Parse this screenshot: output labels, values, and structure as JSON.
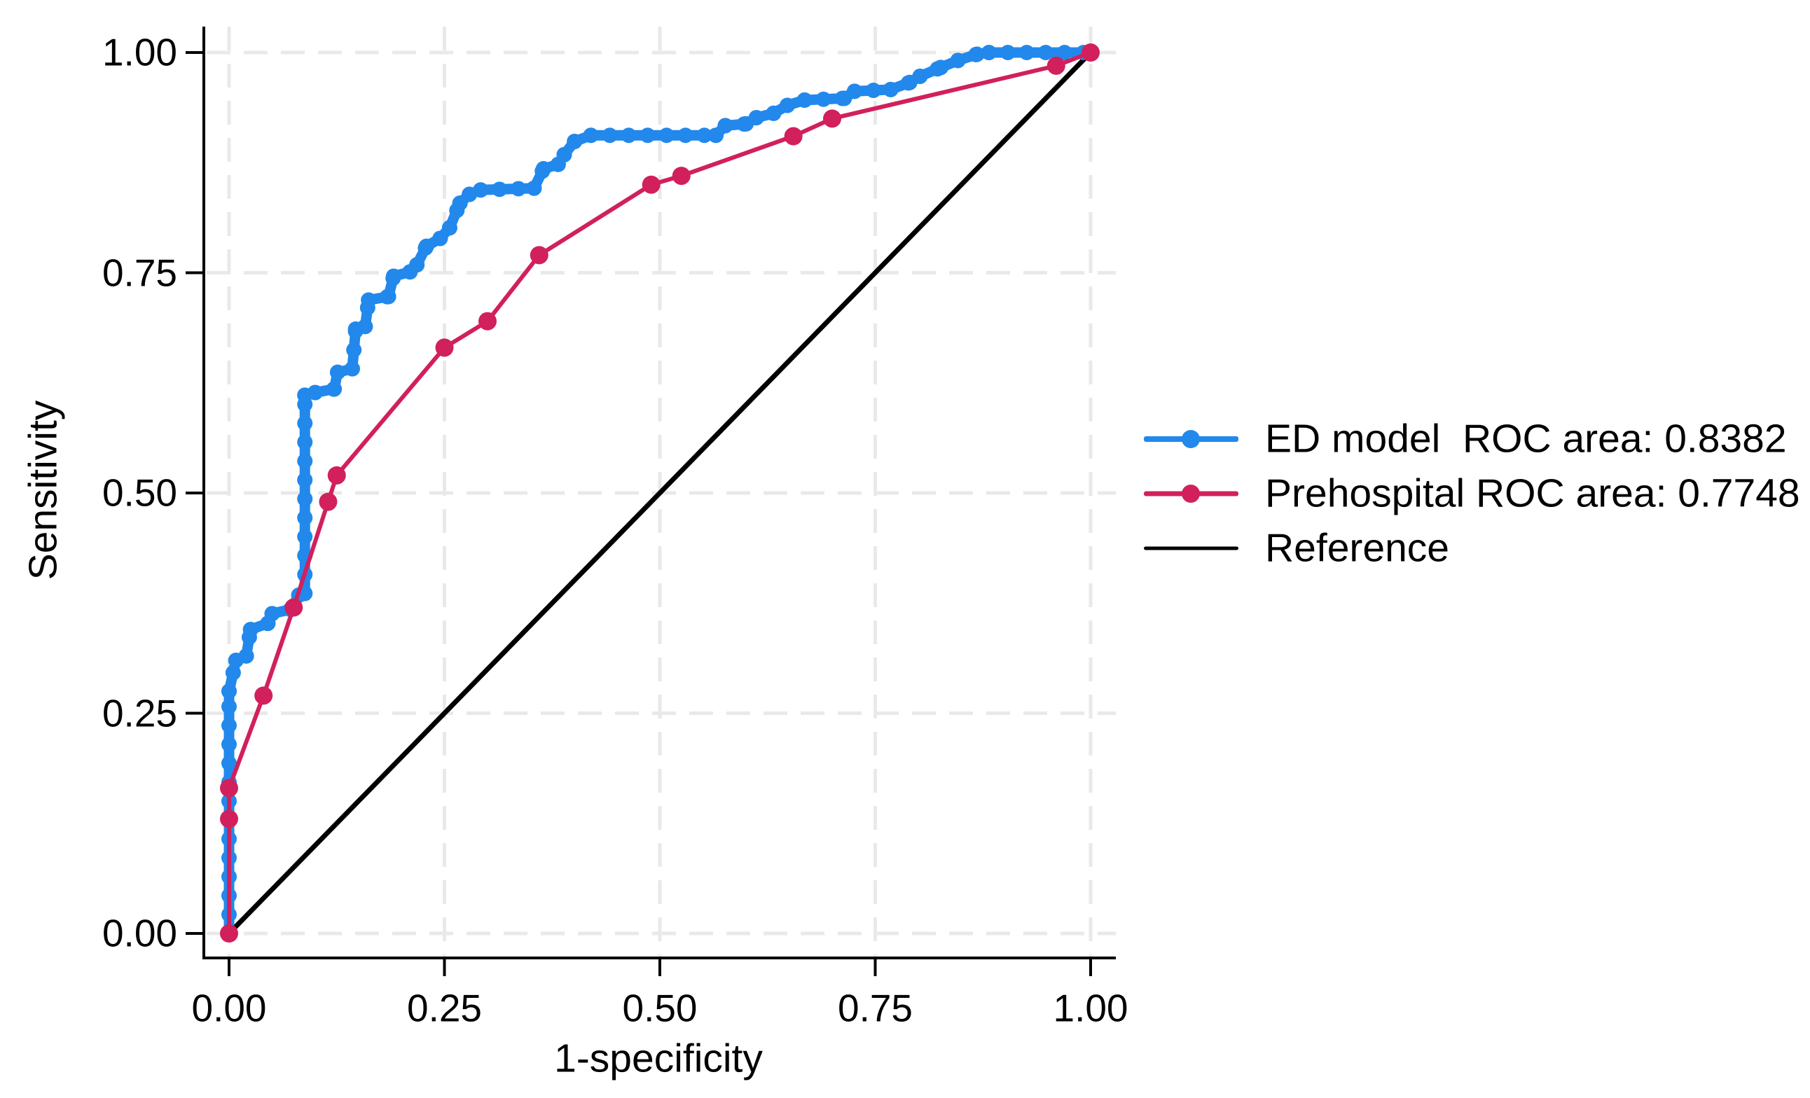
{
  "chart_data": {
    "type": "line",
    "title": "",
    "xlabel": "1-specificity",
    "ylabel": "Sensitivity",
    "xlim": [
      0,
      1
    ],
    "ylim": [
      0,
      1
    ],
    "grid": "dashed-light",
    "legend_position": "center-right",
    "colors": {
      "grid": "#E9E9E9",
      "axis": "#000000",
      "background": "#FFFFFF",
      "ed_model": "#2288EC",
      "prehospital": "#D1205C",
      "reference": "#000000"
    },
    "xticks": {
      "values": [
        0,
        0.25,
        0.5,
        0.75,
        1.0
      ],
      "labels": [
        "0.00",
        "0.25",
        "0.50",
        "0.75",
        "1.00"
      ]
    },
    "yticks": {
      "values": [
        0,
        0.25,
        0.5,
        0.75,
        1.0
      ],
      "labels": [
        "0.00",
        "0.25",
        "0.50",
        "0.75",
        "1.00"
      ]
    },
    "series": [
      {
        "name": "ED model  ROC area: 0.8382",
        "auc": 0.8382,
        "color": "#2288EC",
        "marker": "dense",
        "points": [
          [
            0,
            0
          ],
          [
            0,
            0.275
          ],
          [
            0.008,
            0.31
          ],
          [
            0.02,
            0.315
          ],
          [
            0.025,
            0.345
          ],
          [
            0.045,
            0.352
          ],
          [
            0.05,
            0.363
          ],
          [
            0.072,
            0.368
          ],
          [
            0.081,
            0.384
          ],
          [
            0.088,
            0.386
          ],
          [
            0.088,
            0.611
          ],
          [
            0.1,
            0.614
          ],
          [
            0.122,
            0.618
          ],
          [
            0.126,
            0.637
          ],
          [
            0.143,
            0.641
          ],
          [
            0.147,
            0.686
          ],
          [
            0.158,
            0.689
          ],
          [
            0.162,
            0.719
          ],
          [
            0.185,
            0.723
          ],
          [
            0.191,
            0.746
          ],
          [
            0.21,
            0.751
          ],
          [
            0.218,
            0.759
          ],
          [
            0.229,
            0.78
          ],
          [
            0.245,
            0.789
          ],
          [
            0.256,
            0.801
          ],
          [
            0.268,
            0.829
          ],
          [
            0.279,
            0.839
          ],
          [
            0.292,
            0.844
          ],
          [
            0.354,
            0.846
          ],
          [
            0.365,
            0.868
          ],
          [
            0.382,
            0.873
          ],
          [
            0.389,
            0.884
          ],
          [
            0.401,
            0.899
          ],
          [
            0.42,
            0.906
          ],
          [
            0.565,
            0.906
          ],
          [
            0.576,
            0.917
          ],
          [
            0.6,
            0.919
          ],
          [
            0.612,
            0.926
          ],
          [
            0.632,
            0.931
          ],
          [
            0.648,
            0.94
          ],
          [
            0.668,
            0.946
          ],
          [
            0.714,
            0.948
          ],
          [
            0.726,
            0.956
          ],
          [
            0.768,
            0.958
          ],
          [
            0.79,
            0.966
          ],
          [
            0.802,
            0.973
          ],
          [
            0.826,
            0.983
          ],
          [
            0.846,
            0.991
          ],
          [
            0.868,
            0.998
          ],
          [
            0.882,
            1.0
          ],
          [
            1.0,
            1.0
          ]
        ]
      },
      {
        "name": "Prehospital ROC area: 0.7748",
        "auc": 0.7748,
        "color": "#D1205C",
        "marker": "point",
        "points": [
          [
            0,
            0
          ],
          [
            0,
            0.13
          ],
          [
            0,
            0.165
          ],
          [
            0.04,
            0.27
          ],
          [
            0.075,
            0.37
          ],
          [
            0.115,
            0.49
          ],
          [
            0.125,
            0.52
          ],
          [
            0.25,
            0.665
          ],
          [
            0.3,
            0.695
          ],
          [
            0.36,
            0.77
          ],
          [
            0.49,
            0.85
          ],
          [
            0.525,
            0.86
          ],
          [
            0.655,
            0.905
          ],
          [
            0.7,
            0.925
          ],
          [
            0.96,
            0.985
          ],
          [
            1.0,
            1.0
          ]
        ]
      },
      {
        "name": "Reference",
        "color": "#000000",
        "marker": "none",
        "points": [
          [
            0,
            0
          ],
          [
            1,
            1
          ]
        ]
      }
    ]
  }
}
